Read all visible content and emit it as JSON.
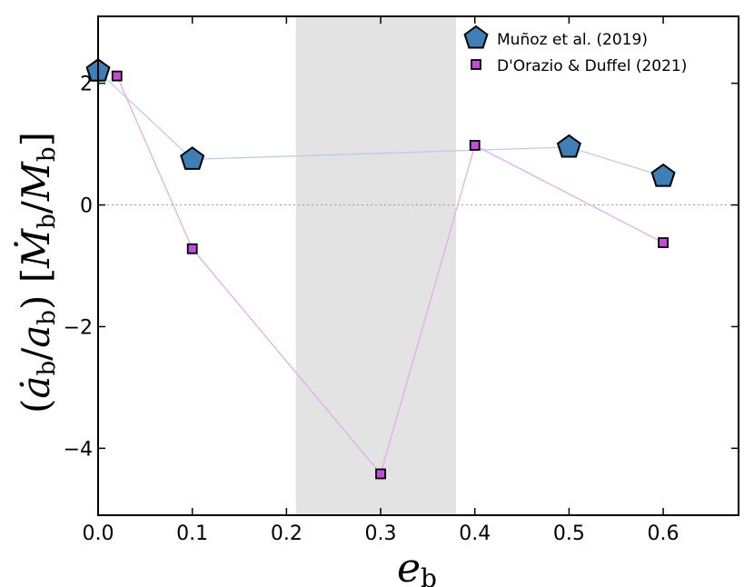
{
  "chart_data": {
    "type": "scatter",
    "xlabel": "e_b",
    "ylabel": "(ȧ_b / a_b) [Ṁ_b / M_b]",
    "xlim": [
      0.0,
      0.68
    ],
    "ylim": [
      -5.1,
      3.1
    ],
    "x_ticks": [
      0.0,
      0.1,
      0.2,
      0.3,
      0.4,
      0.5,
      0.6
    ],
    "x_tick_labels": [
      "0.0",
      "0.1",
      "0.2",
      "0.3",
      "0.4",
      "0.5",
      "0.6"
    ],
    "y_ticks": [
      -4,
      -2,
      0,
      2
    ],
    "y_tick_labels": [
      "−4",
      "−2",
      "0",
      "2"
    ],
    "shaded_region": {
      "x0": 0.21,
      "x1": 0.38,
      "color": "#e3e3e3"
    },
    "zero_line": true,
    "grid": false,
    "legend_position": "top-right",
    "series": [
      {
        "name": "Muñoz et al. (2019)",
        "marker": "pentagon",
        "color": "#3f7fb8",
        "line_color": "#b4cde3",
        "x": [
          0.0,
          0.1,
          0.5,
          0.6
        ],
        "y": [
          2.2,
          0.75,
          0.95,
          0.47
        ]
      },
      {
        "name": "D'Orazio & Duffel (2021)",
        "marker": "square",
        "color": "#c04fd6",
        "line_color": "#e0a8ec",
        "x": [
          0.02,
          0.1,
          0.3,
          0.4,
          0.6
        ],
        "y": [
          2.12,
          -0.72,
          -4.42,
          0.98,
          -0.62
        ]
      }
    ]
  }
}
